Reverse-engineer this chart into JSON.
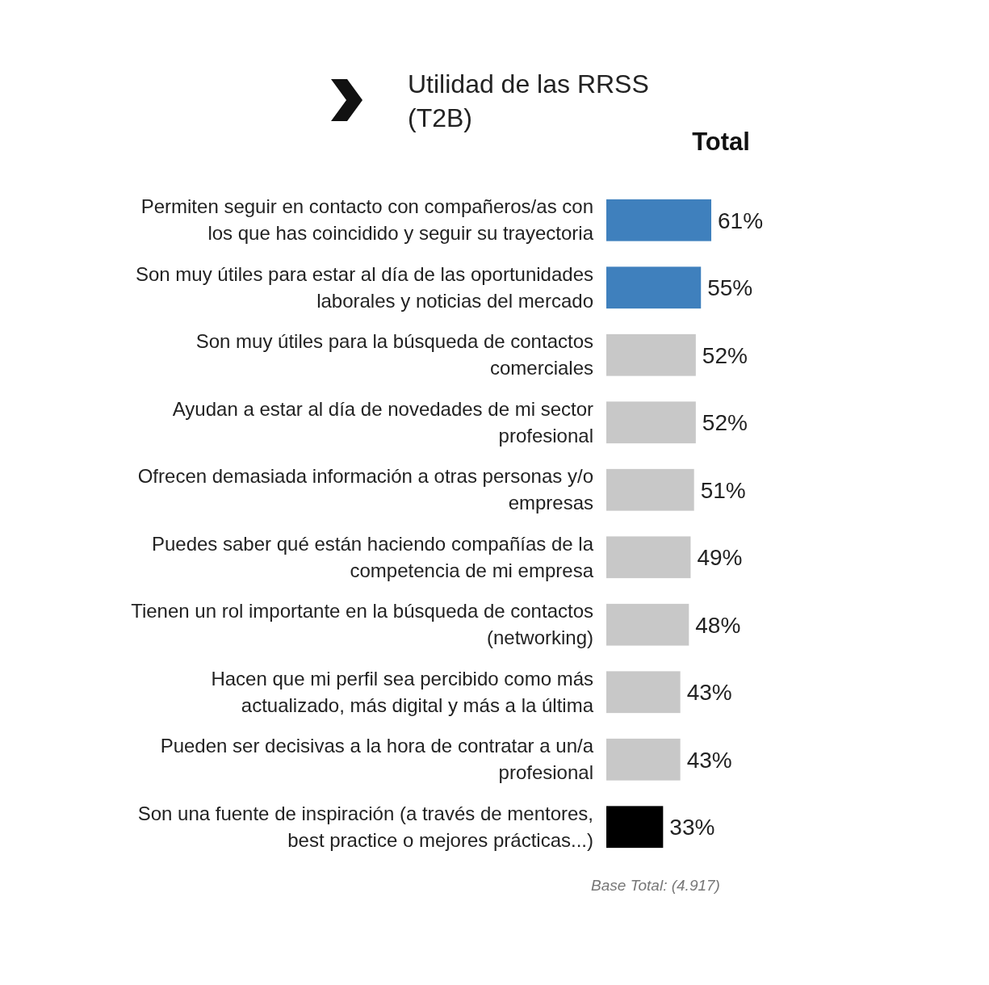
{
  "chart_data": {
    "type": "bar",
    "orientation": "horizontal",
    "title": "Utilidad de las RRSS (T2B)",
    "subtitle": "Total",
    "categories": [
      "Permiten seguir en contacto con compañeros/as con los que has coincidido y seguir su trayectoria",
      "Son muy útiles para estar al día de las oportunidades laborales y noticias del mercado",
      "Son muy útiles para la búsqueda de contactos comerciales",
      "Ayudan a estar al día de novedades de mi sector profesional",
      "Ofrecen demasiada información a otras personas y/o empresas",
      "Puedes saber qué están haciendo compañías de la competencia de mi empresa",
      "Tienen un rol importante en la búsqueda de contactos (networking)",
      "Hacen que mi perfil sea percibido como más actualizado, más digital y más a la última",
      "Pueden ser decisivas a la hora de contratar a un/a profesional",
      "Son una fuente de inspiración (a través de mentores, best practice o mejores prácticas...)"
    ],
    "values": [
      61,
      55,
      52,
      52,
      51,
      49,
      48,
      43,
      43,
      33
    ],
    "colors": [
      "#3f80bd",
      "#3f80bd",
      "#c8c8c8",
      "#c8c8c8",
      "#c8c8c8",
      "#c8c8c8",
      "#c8c8c8",
      "#c8c8c8",
      "#c8c8c8",
      "#000000"
    ],
    "value_labels": [
      "61%",
      "55%",
      "52%",
      "52%",
      "51%",
      "49%",
      "48%",
      "43%",
      "43%",
      "33%"
    ],
    "annotations": [
      "Base Total: (4.917)"
    ]
  }
}
